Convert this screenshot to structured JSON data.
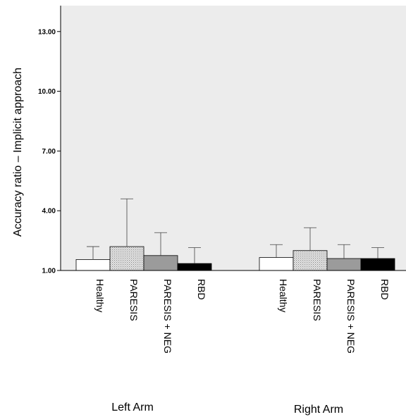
{
  "chart_data": {
    "type": "bar",
    "ylabel": "Accuracy ratio – Implicit approach",
    "y_ticks": [
      "1.00",
      "4.00",
      "7.00",
      "10.00",
      "13.00"
    ],
    "ylim": [
      1.0,
      14.3
    ],
    "grid": false,
    "groups": [
      {
        "name": "Left Arm",
        "bars": [
          {
            "category": "Healthy",
            "value": 1.55,
            "error_upper": 2.2
          },
          {
            "category": "PARESIS",
            "value": 2.2,
            "error_upper": 4.6
          },
          {
            "category": "PARESIS + NEG",
            "value": 1.75,
            "error_upper": 2.9
          },
          {
            "category": "RBD",
            "value": 1.35,
            "error_upper": 2.15
          }
        ]
      },
      {
        "name": "Right Arm",
        "bars": [
          {
            "category": "Healthy",
            "value": 1.65,
            "error_upper": 2.3
          },
          {
            "category": "PARESIS",
            "value": 2.0,
            "error_upper": 3.15
          },
          {
            "category": "PARESIS + NEG",
            "value": 1.6,
            "error_upper": 2.3
          },
          {
            "category": "RBD",
            "value": 1.6,
            "error_upper": 2.15
          }
        ]
      }
    ],
    "bar_styles": {
      "Healthy": {
        "fill": "#ffffff"
      },
      "PARESIS": {
        "fill": "#e2e2e2",
        "pattern": "dots"
      },
      "PARESIS + NEG": {
        "fill": "#9b9b9b"
      },
      "RBD": {
        "fill": "#000000"
      }
    }
  }
}
